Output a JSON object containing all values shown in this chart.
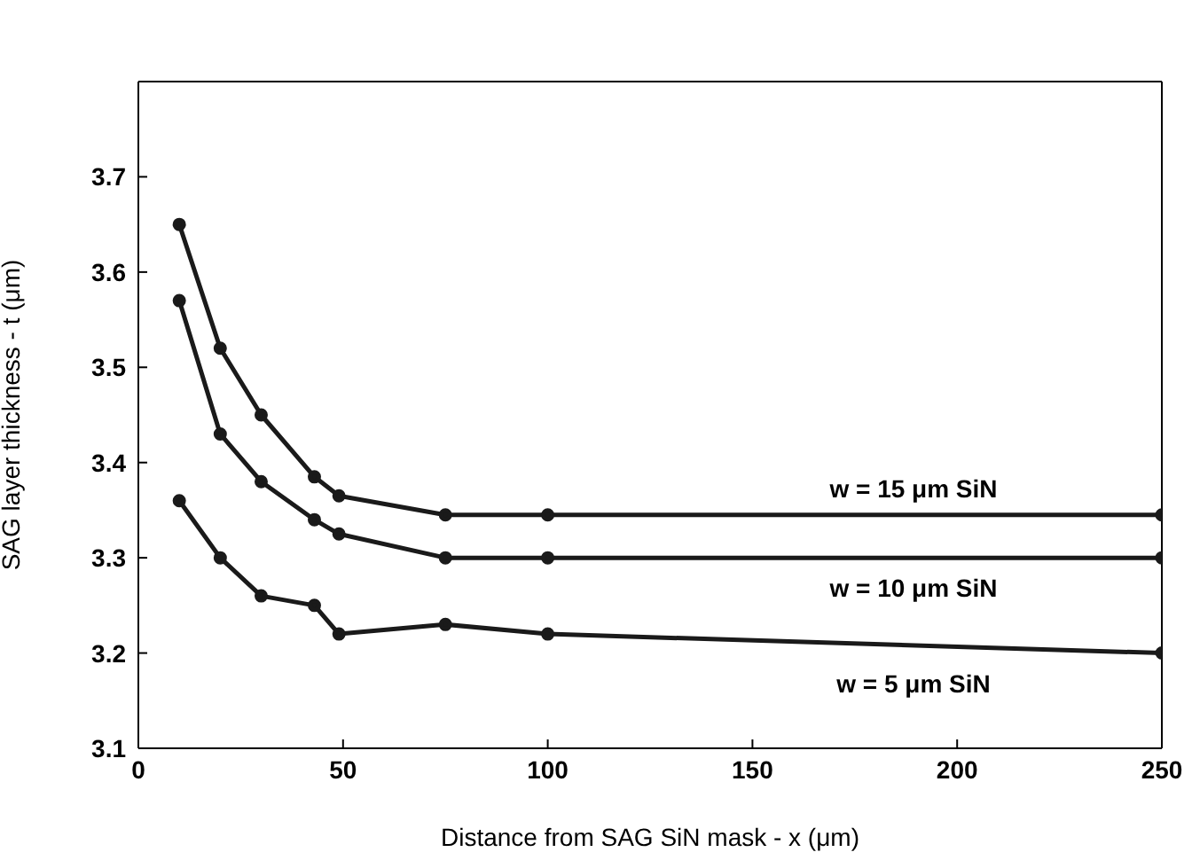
{
  "chart_data": {
    "type": "line",
    "xlabel": "Distance from SAG SiN mask - x (μm)",
    "ylabel": "SAG layer thickness - t  (μm)",
    "x": [
      10,
      20,
      30,
      43,
      49,
      75,
      100,
      250
    ],
    "series": [
      {
        "name": "w = 15 μm SiN",
        "color": "#1a1a1a",
        "values": [
          3.65,
          3.52,
          3.45,
          3.385,
          3.365,
          3.345,
          3.345,
          3.345
        ]
      },
      {
        "name": "w = 10 μm SiN",
        "color": "#1a1a1a",
        "values": [
          3.57,
          3.43,
          3.38,
          3.34,
          3.325,
          3.3,
          3.3,
          3.3
        ]
      },
      {
        "name": "w = 5 μm SiN",
        "color": "#1a1a1a",
        "values": [
          3.36,
          3.3,
          3.26,
          3.25,
          3.22,
          3.23,
          3.22,
          3.2
        ]
      }
    ],
    "xlim": [
      0,
      250
    ],
    "xticks": [
      0,
      50,
      100,
      150,
      200,
      250
    ],
    "ylim": [
      3.1,
      3.8
    ],
    "yticks": [
      3.1,
      3.2,
      3.3,
      3.4,
      3.5,
      3.6,
      3.7
    ],
    "grid": false,
    "marker": "circle",
    "line_style": "solid"
  }
}
